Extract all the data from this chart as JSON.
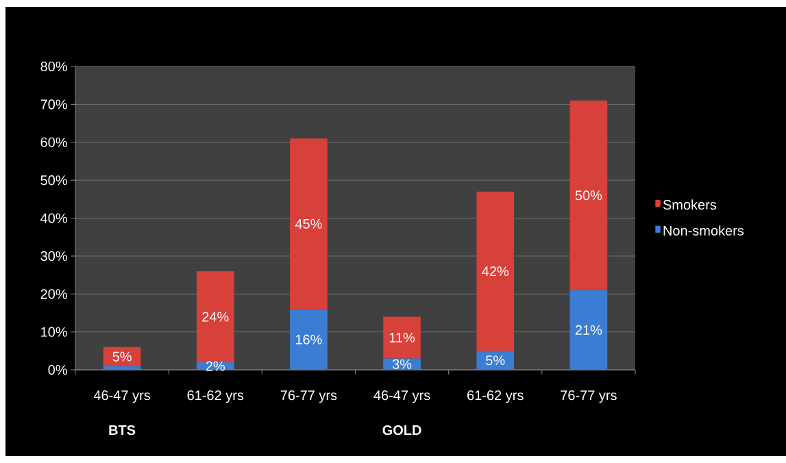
{
  "chart_data": {
    "type": "bar",
    "stacked": true,
    "categories": [
      "46-47 yrs",
      "61-62 yrs",
      "76-77 yrs",
      "46-47 yrs",
      "61-62 yrs",
      "76-77 yrs"
    ],
    "series": [
      {
        "name": "Non-smokers",
        "color": "#3b7dd3",
        "values": [
          1,
          2,
          16,
          3,
          5,
          21
        ],
        "value_labels": [
          null,
          "2%",
          "16%",
          "3%",
          "5%",
          "21%"
        ]
      },
      {
        "name": "Smokers",
        "color": "#d8403a",
        "values": [
          5,
          24,
          45,
          11,
          42,
          50
        ],
        "value_labels": [
          "5%",
          "24%",
          "45%",
          "11%",
          "42%",
          "50%"
        ]
      }
    ],
    "ylim": [
      0,
      80
    ],
    "yticks": [
      {
        "value": 0,
        "label": "0%"
      },
      {
        "value": 10,
        "label": "10%"
      },
      {
        "value": 20,
        "label": "20%"
      },
      {
        "value": 30,
        "label": "30%"
      },
      {
        "value": 40,
        "label": "40%"
      },
      {
        "value": 50,
        "label": "50%"
      },
      {
        "value": 60,
        "label": "60%"
      },
      {
        "value": 70,
        "label": "70%"
      },
      {
        "value": 80,
        "label": "80%"
      }
    ],
    "grid": "y",
    "legend": "right",
    "annotations": [
      "BTS",
      "GOLD"
    ]
  }
}
